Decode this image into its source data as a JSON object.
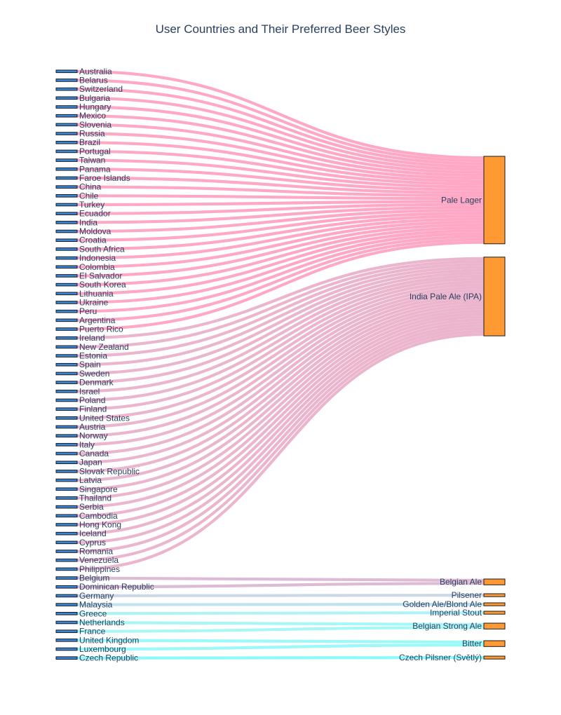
{
  "chart_data": {
    "type": "sankey",
    "title": "User Countries and Their Preferred Beer Styles",
    "colors": {
      "source_node": "#3a86d8",
      "target_node": "#ff9933",
      "node_border": "#1a1a1a",
      "label_text": "#2a3f5f"
    },
    "sources": [
      "Australia",
      "Belarus",
      "Switzerland",
      "Bulgaria",
      "Hungary",
      "Mexico",
      "Slovenia",
      "Russia",
      "Brazil",
      "Portugal",
      "Taiwan",
      "Panama",
      "Faroe Islands",
      "China",
      "Chile",
      "Turkey",
      "Ecuador",
      "India",
      "Moldova",
      "Croatia",
      "South Africa",
      "Indonesia",
      "Colombia",
      "El Salvador",
      "South Korea",
      "Lithuania",
      "Ukraine",
      "Peru",
      "Argentina",
      "Puerto Rico",
      "Ireland",
      "New Zealand",
      "Estonia",
      "Spain",
      "Sweden",
      "Denmark",
      "Israel",
      "Poland",
      "Finland",
      "United States",
      "Austria",
      "Norway",
      "Italy",
      "Canada",
      "Japan",
      "Slovak Republic",
      "Latvia",
      "Singapore",
      "Thailand",
      "Serbia",
      "Cambodia",
      "Hong Kong",
      "Iceland",
      "Cyprus",
      "Romania",
      "Venezuela",
      "Philippines",
      "Belgium",
      "Dominican Republic",
      "Germany",
      "Malaysia",
      "Greece",
      "Netherlands",
      "France",
      "United Kingdom",
      "Luxembourg",
      "Czech Republic"
    ],
    "targets": [
      {
        "name": "Pale Lager",
        "color": "#ff9fbf"
      },
      {
        "name": "India Pale Ale (IPA)",
        "color": "#e9adc8"
      },
      {
        "name": "Belgian Ale",
        "color": "#dab4d0"
      },
      {
        "name": "Pilsener",
        "color": "#c8d4e4"
      },
      {
        "name": "Golden Ale/Blond Ale",
        "color": "#b8e0ec"
      },
      {
        "name": "Imperial Stout",
        "color": "#a6f2f6"
      },
      {
        "name": "Belgian Strong Ale",
        "color": "#9ef6f6"
      },
      {
        "name": "Bitter",
        "color": "#8ff8f8"
      },
      {
        "name": "Czech Pilsner (Světlý)",
        "color": "#80fafa"
      }
    ],
    "links": [
      [
        "Australia",
        "Pale Lager",
        1
      ],
      [
        "Belarus",
        "Pale Lager",
        1
      ],
      [
        "Switzerland",
        "Pale Lager",
        1
      ],
      [
        "Bulgaria",
        "Pale Lager",
        1
      ],
      [
        "Hungary",
        "Pale Lager",
        1
      ],
      [
        "Mexico",
        "Pale Lager",
        1
      ],
      [
        "Slovenia",
        "Pale Lager",
        1
      ],
      [
        "Russia",
        "Pale Lager",
        1
      ],
      [
        "Brazil",
        "Pale Lager",
        1
      ],
      [
        "Portugal",
        "Pale Lager",
        1
      ],
      [
        "Taiwan",
        "Pale Lager",
        1
      ],
      [
        "Panama",
        "Pale Lager",
        1
      ],
      [
        "Faroe Islands",
        "Pale Lager",
        1
      ],
      [
        "China",
        "Pale Lager",
        1
      ],
      [
        "Chile",
        "Pale Lager",
        1
      ],
      [
        "Turkey",
        "Pale Lager",
        1
      ],
      [
        "Ecuador",
        "Pale Lager",
        1
      ],
      [
        "India",
        "Pale Lager",
        1
      ],
      [
        "Moldova",
        "Pale Lager",
        1
      ],
      [
        "Croatia",
        "Pale Lager",
        1
      ],
      [
        "South Africa",
        "Pale Lager",
        1
      ],
      [
        "Indonesia",
        "Pale Lager",
        1
      ],
      [
        "Colombia",
        "Pale Lager",
        1
      ],
      [
        "El Salvador",
        "Pale Lager",
        1
      ],
      [
        "South Korea",
        "Pale Lager",
        1
      ],
      [
        "Lithuania",
        "Pale Lager",
        1
      ],
      [
        "Ukraine",
        "Pale Lager",
        1
      ],
      [
        "Peru",
        "Pale Lager",
        1
      ],
      [
        "Argentina",
        "Pale Lager",
        1
      ],
      [
        "Puerto Rico",
        "Pale Lager",
        1
      ],
      [
        "Ireland",
        "India Pale Ale (IPA)",
        1
      ],
      [
        "New Zealand",
        "India Pale Ale (IPA)",
        1
      ],
      [
        "Estonia",
        "India Pale Ale (IPA)",
        1
      ],
      [
        "Spain",
        "India Pale Ale (IPA)",
        1
      ],
      [
        "Sweden",
        "India Pale Ale (IPA)",
        1
      ],
      [
        "Denmark",
        "India Pale Ale (IPA)",
        1
      ],
      [
        "Israel",
        "India Pale Ale (IPA)",
        1
      ],
      [
        "Poland",
        "India Pale Ale (IPA)",
        1
      ],
      [
        "Finland",
        "India Pale Ale (IPA)",
        1
      ],
      [
        "United States",
        "India Pale Ale (IPA)",
        1
      ],
      [
        "Austria",
        "India Pale Ale (IPA)",
        1
      ],
      [
        "Norway",
        "India Pale Ale (IPA)",
        1
      ],
      [
        "Italy",
        "India Pale Ale (IPA)",
        1
      ],
      [
        "Canada",
        "India Pale Ale (IPA)",
        1
      ],
      [
        "Japan",
        "India Pale Ale (IPA)",
        1
      ],
      [
        "Slovak Republic",
        "India Pale Ale (IPA)",
        1
      ],
      [
        "Latvia",
        "India Pale Ale (IPA)",
        1
      ],
      [
        "Singapore",
        "India Pale Ale (IPA)",
        1
      ],
      [
        "Thailand",
        "India Pale Ale (IPA)",
        1
      ],
      [
        "Serbia",
        "India Pale Ale (IPA)",
        1
      ],
      [
        "Cambodia",
        "India Pale Ale (IPA)",
        1
      ],
      [
        "Hong Kong",
        "India Pale Ale (IPA)",
        1
      ],
      [
        "Iceland",
        "India Pale Ale (IPA)",
        1
      ],
      [
        "Cyprus",
        "India Pale Ale (IPA)",
        1
      ],
      [
        "Romania",
        "India Pale Ale (IPA)",
        1
      ],
      [
        "Venezuela",
        "India Pale Ale (IPA)",
        1
      ],
      [
        "Philippines",
        "India Pale Ale (IPA)",
        1
      ],
      [
        "Belgium",
        "Belgian Ale",
        1
      ],
      [
        "Dominican Republic",
        "Belgian Ale",
        1
      ],
      [
        "Germany",
        "Pilsener",
        1
      ],
      [
        "Malaysia",
        "Golden Ale/Blond Ale",
        1
      ],
      [
        "Greece",
        "Imperial Stout",
        1
      ],
      [
        "Netherlands",
        "Belgian Strong Ale",
        1
      ],
      [
        "France",
        "Belgian Strong Ale",
        1
      ],
      [
        "United Kingdom",
        "Bitter",
        1
      ],
      [
        "Luxembourg",
        "Bitter",
        1
      ],
      [
        "Czech Republic",
        "Czech Pilsner (Světlý)",
        1
      ]
    ]
  }
}
